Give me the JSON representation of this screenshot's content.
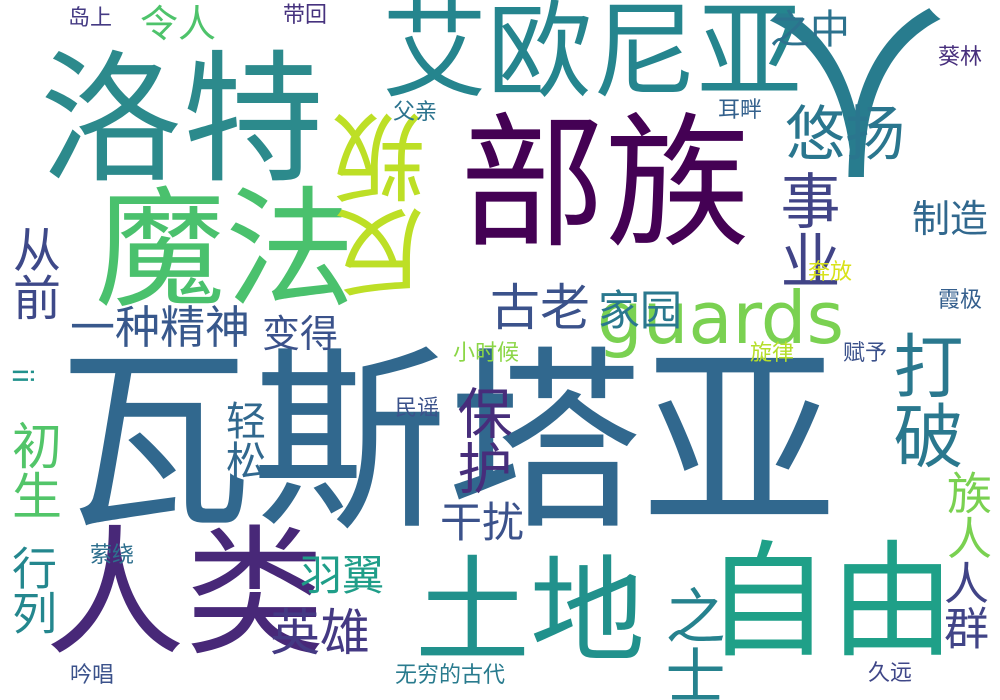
{
  "words": [
    {
      "text": "瓦斯塔亚",
      "color": "#31688e"
    },
    {
      "text": "部族",
      "color": "#440154"
    },
    {
      "text": "洛特",
      "color": "#2c8a8c"
    },
    {
      "text": "人",
      "color": "#287c8e"
    },
    {
      "text": "艾欧尼亚",
      "color": "#25858e"
    },
    {
      "text": "人类",
      "color": "#482878"
    },
    {
      "text": "自由",
      "color": "#1fa088"
    },
    {
      "text": "土地",
      "color": "#21918c"
    },
    {
      "text": "魔法",
      "color": "#4ac16d"
    },
    {
      "text": "反叛",
      "color": "#bddf26"
    },
    {
      "text": "guards",
      "color": "#7ad151"
    },
    {
      "text": "打破",
      "color": "#2a788e"
    },
    {
      "text": "族人",
      "color": "#7ad151"
    },
    {
      "text": "悠扬",
      "color": "#2a768e"
    },
    {
      "text": "事业",
      "color": "#414487"
    },
    {
      "text": "保护",
      "color": "#472d7b"
    },
    {
      "text": "古老",
      "color": "#3b528b"
    },
    {
      "text": "家园",
      "color": "#2a788e"
    },
    {
      "text": "从前",
      "color": "#3e4989"
    },
    {
      "text": "一种精神",
      "color": "#38588c"
    },
    {
      "text": "变得",
      "color": "#3b528b"
    },
    {
      "text": "初生",
      "color": "#52c569"
    },
    {
      "text": "行列",
      "color": "#24878e"
    },
    {
      "text": "轻松",
      "color": "#31688e"
    },
    {
      "text": "干扰",
      "color": "#3b528b"
    },
    {
      "text": "英雄",
      "color": "#443983"
    },
    {
      "text": "羽翼",
      "color": "#1f9e89"
    },
    {
      "text": "之士",
      "color": "#26828e"
    },
    {
      "text": "人群",
      "color": "#414487"
    },
    {
      "text": "制造",
      "color": "#31688e"
    },
    {
      "text": "令人",
      "color": "#4ec36b"
    },
    {
      "text": "之中",
      "color": "#2c728e"
    },
    {
      "text": "岛上",
      "color": "#443a83"
    },
    {
      "text": "带回",
      "color": "#46327e"
    },
    {
      "text": "葵林",
      "color": "#472f7d"
    },
    {
      "text": "父亲",
      "color": "#2c738e"
    },
    {
      "text": "耳畔",
      "color": "#34618d"
    },
    {
      "text": "奔放",
      "color": "#d8e219"
    },
    {
      "text": "霞极",
      "color": "#355f8d"
    },
    {
      "text": "小时候",
      "color": "#8bd646"
    },
    {
      "text": "旋律",
      "color": "#b5de2b"
    },
    {
      "text": "赋予",
      "color": "#3b518b"
    },
    {
      "text": "民谣",
      "color": "#3b528b"
    },
    {
      "text": "萦绕",
      "color": "#2e6f8e"
    },
    {
      "text": "吟唱",
      "color": "#3b528b"
    },
    {
      "text": "无穷的古代",
      "color": "#297b8e"
    },
    {
      "text": "久远",
      "color": "#3f4788"
    },
    {
      "text": "ii",
      "color": "#21918c"
    }
  ]
}
